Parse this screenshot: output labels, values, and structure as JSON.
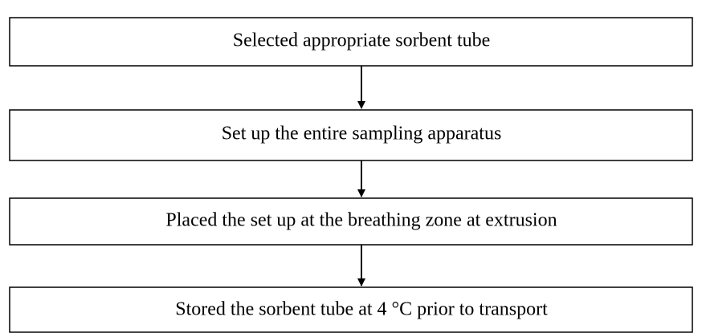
{
  "nodes": [
    {
      "label": "Selected appropriate sorbent tube"
    },
    {
      "label": "Set up the entire sampling apparatus"
    },
    {
      "label": "Placed the set up at the breathing zone at extrusion"
    },
    {
      "label": "Stored the sorbent tube at 4 °C prior to transport"
    }
  ]
}
